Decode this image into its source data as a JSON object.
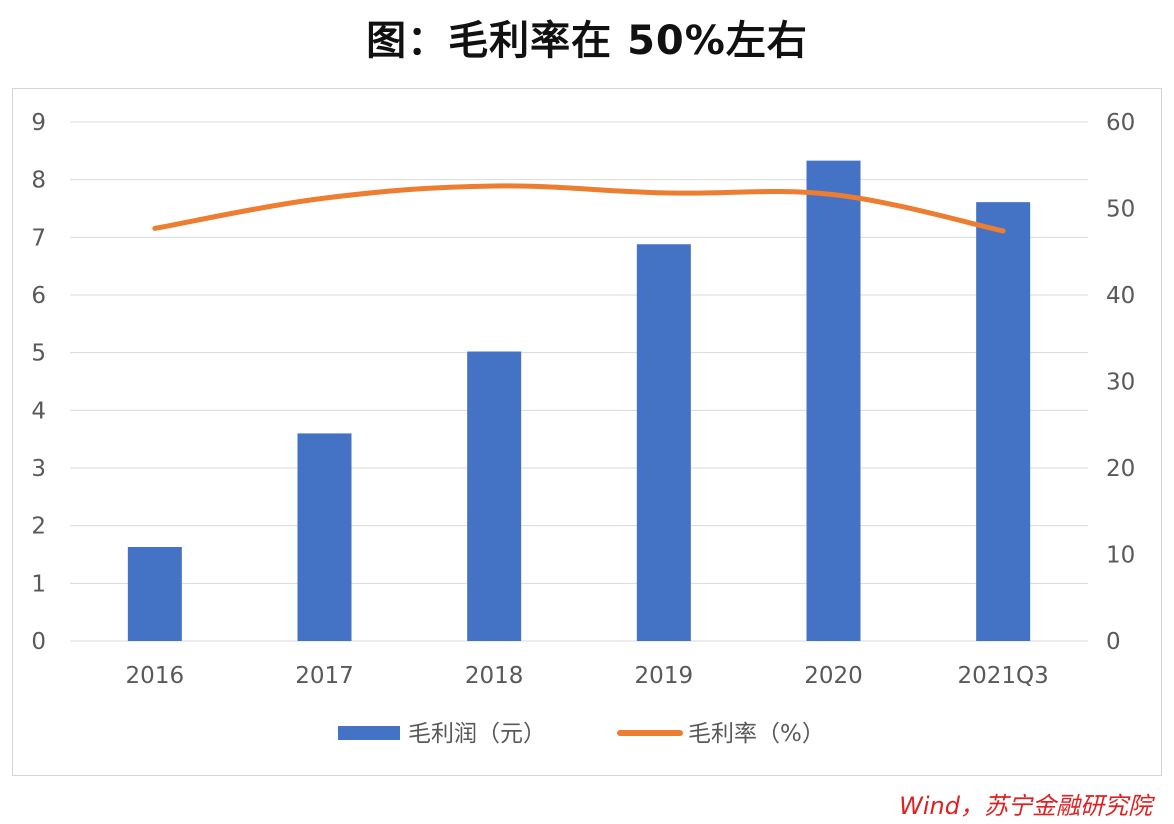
{
  "title": "图：毛利率在 50%左右",
  "source": "Wind，苏宁金融研究院",
  "colors": {
    "bar": "#4472c4",
    "line": "#ed7d31",
    "grid": "#d9d9d9",
    "text": "#595959"
  },
  "chart_data": {
    "type": "bar",
    "categories": [
      "2016",
      "2017",
      "2018",
      "2019",
      "2020",
      "2021Q3"
    ],
    "series": [
      {
        "name": "毛利润（元）",
        "type": "bar",
        "axis": "left",
        "values": [
          1.63,
          3.6,
          5.02,
          6.88,
          8.33,
          7.61
        ]
      },
      {
        "name": "毛利率（%）",
        "type": "line",
        "axis": "right",
        "values": [
          47.7,
          51.2,
          52.6,
          51.8,
          51.6,
          47.4
        ]
      }
    ],
    "ylim_left": [
      0,
      9
    ],
    "yticks_left": [
      "0",
      "1",
      "2",
      "3",
      "4",
      "5",
      "6",
      "7",
      "8",
      "9"
    ],
    "ylim_right": [
      0,
      60
    ],
    "yticks_right": [
      "0",
      "10",
      "20",
      "30",
      "40",
      "50",
      "60"
    ],
    "grid": true,
    "legend_position": "bottom"
  }
}
